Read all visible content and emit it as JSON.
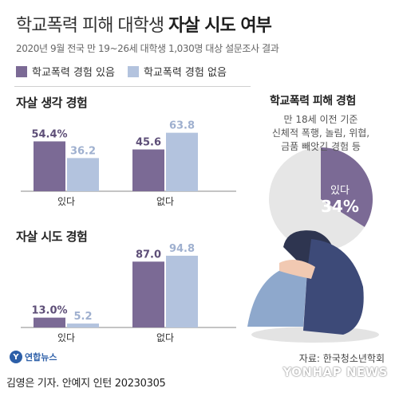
{
  "header": {
    "title_main": "학교폭력 피해 대학생 ",
    "title_bold": "자살 시도 여부",
    "subtitle": "2020년 9월 전국 만 19~26세 대학생 1,030명 대상 설문조사 결과"
  },
  "legend": [
    {
      "label": "학교폭력 경험 있음",
      "color": "#7b6a95"
    },
    {
      "label": "학교폭력 경험 없음",
      "color": "#b3c3de"
    }
  ],
  "chart_data": [
    {
      "type": "bar",
      "title": "자살 생각 경험",
      "categories": [
        "있다",
        "없다"
      ],
      "series": [
        {
          "name": "학교폭력 경험 있음",
          "values": [
            54.4,
            45.6
          ],
          "labels": [
            "54.4%",
            "45.6"
          ]
        },
        {
          "name": "학교폭력 경험 없음",
          "values": [
            36.2,
            63.8
          ],
          "labels": [
            "36.2",
            "63.8"
          ]
        }
      ],
      "ylim": [
        0,
        100
      ]
    },
    {
      "type": "bar",
      "title": "자살 시도 경험",
      "categories": [
        "있다",
        "없다"
      ],
      "series": [
        {
          "name": "학교폭력 경험 있음",
          "values": [
            13.0,
            87.0
          ],
          "labels": [
            "13.0%",
            "87.0"
          ]
        },
        {
          "name": "학교폭력 경험 없음",
          "values": [
            5.2,
            94.8
          ],
          "labels": [
            "5.2",
            "94.8"
          ]
        }
      ],
      "ylim": [
        0,
        100
      ]
    },
    {
      "type": "pie",
      "title": "학교폭력 피해 경험",
      "categories": [
        "있다",
        "없다"
      ],
      "values": [
        34,
        66
      ],
      "label_text": "있다",
      "label_value": "34%"
    }
  ],
  "right_panel": {
    "title": "학교폭력 피해 경험",
    "desc_line1": "만 18세 이전 기준",
    "desc_line2": "신체적 폭행, 놀림, 위협,",
    "desc_line3": "금품 빼앗긴 경험 등"
  },
  "footer": {
    "source": "자료: 한국청소년학회",
    "credit": "김영은 기자. 안예지 인턴  20230305",
    "logo": "연합뉴스",
    "watermark": "YONHAP NEWS"
  },
  "colors": {
    "purple": "#7b6a95",
    "lightblue": "#b3c3de",
    "pie_main": "#7b6a95",
    "pie_rest": "#e6e6e6"
  }
}
